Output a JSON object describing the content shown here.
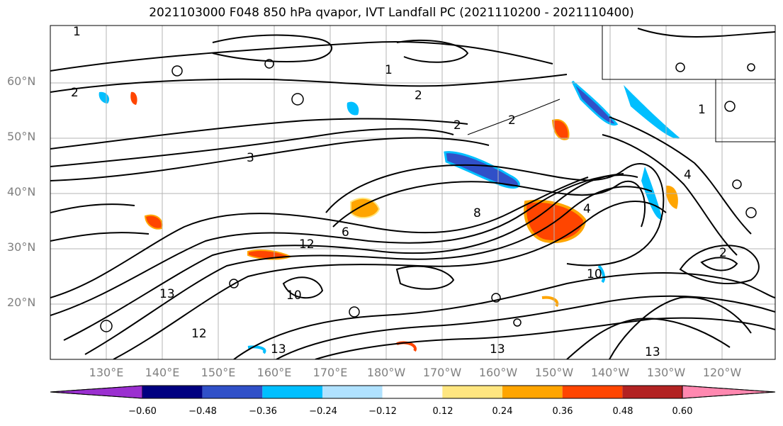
{
  "title": "2021103000 F048 850 hPa qvapor, IVT Landfall PC (2021110200 - 2021110400)",
  "latitude_labels": [
    "60°N",
    "50°N",
    "40°N",
    "30°N",
    "20°N"
  ],
  "longitude_labels": [
    "130°E",
    "140°E",
    "150°E",
    "160°E",
    "170°E",
    "180°W",
    "170°W",
    "160°W",
    "150°W",
    "140°W",
    "130°W",
    "120°W"
  ],
  "colorbar": {
    "tick_labels": [
      "−0.60",
      "−0.48",
      "−0.36",
      "−0.24",
      "−0.12",
      "0.12",
      "0.24",
      "0.36",
      "0.48",
      "0.60"
    ],
    "colors": [
      "#9b30d0",
      "#000080",
      "#3050c8",
      "#00bfff",
      "#b0e2ff",
      "#ffffff",
      "#ffe680",
      "#ffa500",
      "#ff4500",
      "#b22222",
      "#ff88b0"
    ]
  },
  "contour_labels": [
    "1",
    "1",
    "2",
    "2",
    "2",
    "2",
    "3",
    "4",
    "6",
    "8",
    "10",
    "10",
    "12",
    "12",
    "13",
    "13",
    "13",
    "13",
    "1",
    "2",
    "4"
  ]
}
